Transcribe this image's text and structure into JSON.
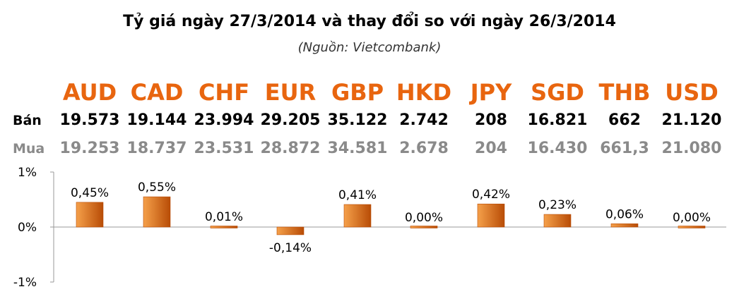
{
  "header": {
    "title": "Tỷ giá ngày 27/3/2014 và thay đổi so với ngày 26/3/2014",
    "source": "(Nguồn: Vietcombank)"
  },
  "rows": {
    "ban_label": "Bán",
    "mua_label": "Mua"
  },
  "colors": {
    "accent": "#E8650F",
    "bar_light": "#F5A04A",
    "bar_dark": "#B84C06",
    "buy_text": "#8A8A8A"
  },
  "table": [
    {
      "currency": "AUD",
      "ban": "19.573",
      "mua": "19.253"
    },
    {
      "currency": "CAD",
      "ban": "19.144",
      "mua": "18.737"
    },
    {
      "currency": "CHF",
      "ban": "23.994",
      "mua": "23.531"
    },
    {
      "currency": "EUR",
      "ban": "29.205",
      "mua": "28.872"
    },
    {
      "currency": "GBP",
      "ban": "35.122",
      "mua": "34.581"
    },
    {
      "currency": "HKD",
      "ban": "2.742",
      "mua": "2.678"
    },
    {
      "currency": "JPY",
      "ban": "208",
      "mua": "204"
    },
    {
      "currency": "SGD",
      "ban": "16.821",
      "mua": "16.430"
    },
    {
      "currency": "THB",
      "ban": "662",
      "mua": "661,3"
    },
    {
      "currency": "USD",
      "ban": "21.120",
      "mua": "21.080"
    }
  ],
  "chart_data": {
    "type": "bar",
    "categories": [
      "AUD",
      "CAD",
      "CHF",
      "EUR",
      "GBP",
      "HKD",
      "JPY",
      "SGD",
      "THB",
      "USD"
    ],
    "values": [
      0.45,
      0.55,
      0.01,
      -0.14,
      0.41,
      0.0,
      0.42,
      0.23,
      0.06,
      0.0
    ],
    "data_labels": [
      "0,45%",
      "0,55%",
      "0,01%",
      "-0,14%",
      "0,41%",
      "0,00%",
      "0,42%",
      "0,23%",
      "0,06%",
      "0,00%"
    ],
    "ylim": [
      -1,
      1
    ],
    "ytick_values": [
      1,
      0,
      -1
    ],
    "ytick_labels": [
      "1%",
      "0%",
      "-1%"
    ],
    "grid": false,
    "legend": "none"
  }
}
